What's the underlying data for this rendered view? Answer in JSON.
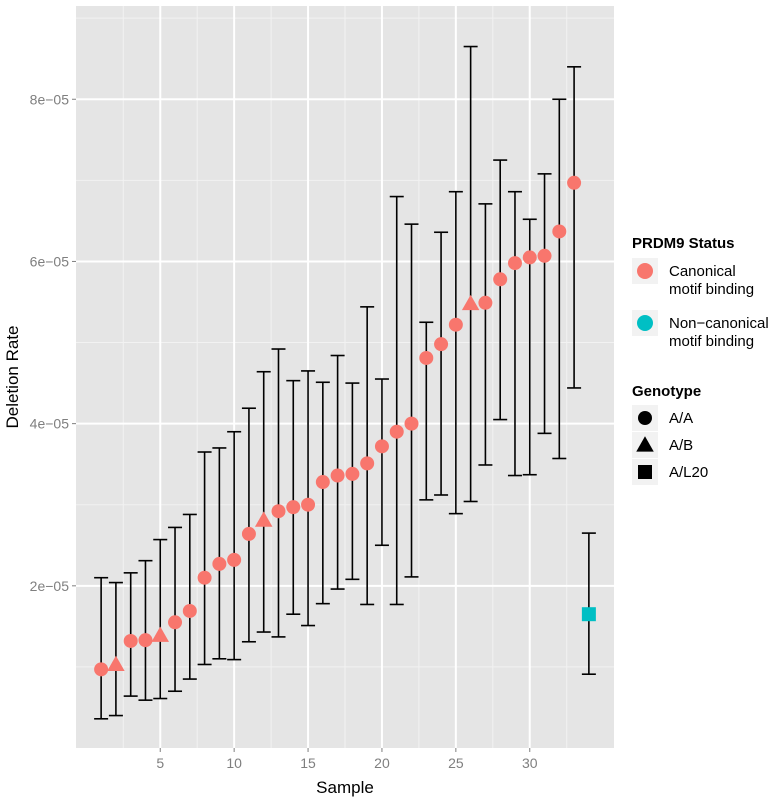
{
  "chart_data": {
    "type": "scatter",
    "xlabel": "Sample",
    "ylabel": "Deletion Rate",
    "xlim": [
      -0.7,
      35.7
    ],
    "ylim": [
      0.0,
      9.15e-05
    ],
    "x_ticks": [
      5,
      10,
      15,
      20,
      25,
      30
    ],
    "x_tick_labels": [
      "5",
      "10",
      "15",
      "20",
      "25",
      "30"
    ],
    "y_ticks": [
      2e-05,
      4e-05,
      6e-05,
      8e-05
    ],
    "y_tick_labels": [
      "2e−05",
      "4e−05",
      "6e−05",
      "8e−05"
    ],
    "grid": true,
    "legend_position": "right",
    "colors": {
      "Canonical motif binding": "#F8766D",
      "Non-canonical motif binding": "#00BFC4"
    },
    "points": [
      {
        "x": 1,
        "y": 9.7e-06,
        "ymin": 3.6e-06,
        "ymax": 2.1e-05,
        "status": "canonical",
        "genotype": "A/A"
      },
      {
        "x": 2,
        "y": 1.03e-05,
        "ymin": 4e-06,
        "ymax": 2.04e-05,
        "status": "canonical",
        "genotype": "A/B"
      },
      {
        "x": 3,
        "y": 1.32e-05,
        "ymin": 6.4e-06,
        "ymax": 2.16e-05,
        "status": "canonical",
        "genotype": "A/A"
      },
      {
        "x": 4,
        "y": 1.33e-05,
        "ymin": 5.9e-06,
        "ymax": 2.31e-05,
        "status": "canonical",
        "genotype": "A/A"
      },
      {
        "x": 5,
        "y": 1.39e-05,
        "ymin": 6.1e-06,
        "ymax": 2.57e-05,
        "status": "canonical",
        "genotype": "A/B"
      },
      {
        "x": 6,
        "y": 1.55e-05,
        "ymin": 7e-06,
        "ymax": 2.72e-05,
        "status": "canonical",
        "genotype": "A/A"
      },
      {
        "x": 7,
        "y": 1.69e-05,
        "ymin": 8.5e-06,
        "ymax": 2.88e-05,
        "status": "canonical",
        "genotype": "A/A"
      },
      {
        "x": 8,
        "y": 2.1e-05,
        "ymin": 1.03e-05,
        "ymax": 3.65e-05,
        "status": "canonical",
        "genotype": "A/A"
      },
      {
        "x": 9,
        "y": 2.27e-05,
        "ymin": 1.1e-05,
        "ymax": 3.7e-05,
        "status": "canonical",
        "genotype": "A/A"
      },
      {
        "x": 10,
        "y": 2.32e-05,
        "ymin": 1.09e-05,
        "ymax": 3.9e-05,
        "status": "canonical",
        "genotype": "A/A"
      },
      {
        "x": 11,
        "y": 2.64e-05,
        "ymin": 1.31e-05,
        "ymax": 4.19e-05,
        "status": "canonical",
        "genotype": "A/A"
      },
      {
        "x": 12,
        "y": 2.81e-05,
        "ymin": 1.43e-05,
        "ymax": 4.64e-05,
        "status": "canonical",
        "genotype": "A/B"
      },
      {
        "x": 13,
        "y": 2.92e-05,
        "ymin": 1.37e-05,
        "ymax": 4.92e-05,
        "status": "canonical",
        "genotype": "A/A"
      },
      {
        "x": 14,
        "y": 2.97e-05,
        "ymin": 1.65e-05,
        "ymax": 4.53e-05,
        "status": "canonical",
        "genotype": "A/A"
      },
      {
        "x": 15,
        "y": 3e-05,
        "ymin": 1.51e-05,
        "ymax": 4.65e-05,
        "status": "canonical",
        "genotype": "A/A"
      },
      {
        "x": 16,
        "y": 3.28e-05,
        "ymin": 1.78e-05,
        "ymax": 4.51e-05,
        "status": "canonical",
        "genotype": "A/A"
      },
      {
        "x": 17,
        "y": 3.36e-05,
        "ymin": 1.96e-05,
        "ymax": 4.84e-05,
        "status": "canonical",
        "genotype": "A/A"
      },
      {
        "x": 18,
        "y": 3.38e-05,
        "ymin": 2.08e-05,
        "ymax": 4.5e-05,
        "status": "canonical",
        "genotype": "A/A"
      },
      {
        "x": 19,
        "y": 3.51e-05,
        "ymin": 1.77e-05,
        "ymax": 5.44e-05,
        "status": "canonical",
        "genotype": "A/A"
      },
      {
        "x": 20,
        "y": 3.72e-05,
        "ymin": 2.5e-05,
        "ymax": 4.55e-05,
        "status": "canonical",
        "genotype": "A/A"
      },
      {
        "x": 21,
        "y": 3.9e-05,
        "ymin": 1.77e-05,
        "ymax": 6.8e-05,
        "status": "canonical",
        "genotype": "A/A"
      },
      {
        "x": 22,
        "y": 4e-05,
        "ymin": 2.11e-05,
        "ymax": 6.46e-05,
        "status": "canonical",
        "genotype": "A/A"
      },
      {
        "x": 23,
        "y": 4.81e-05,
        "ymin": 3.06e-05,
        "ymax": 5.25e-05,
        "status": "canonical",
        "genotype": "A/A"
      },
      {
        "x": 24,
        "y": 4.98e-05,
        "ymin": 3.12e-05,
        "ymax": 6.36e-05,
        "status": "canonical",
        "genotype": "A/A"
      },
      {
        "x": 25,
        "y": 5.22e-05,
        "ymin": 2.89e-05,
        "ymax": 6.86e-05,
        "status": "canonical",
        "genotype": "A/A"
      },
      {
        "x": 26,
        "y": 5.48e-05,
        "ymin": 3.04e-05,
        "ymax": 8.65e-05,
        "status": "canonical",
        "genotype": "A/B"
      },
      {
        "x": 27,
        "y": 5.49e-05,
        "ymin": 3.49e-05,
        "ymax": 6.71e-05,
        "status": "canonical",
        "genotype": "A/A"
      },
      {
        "x": 28,
        "y": 5.78e-05,
        "ymin": 4.05e-05,
        "ymax": 7.25e-05,
        "status": "canonical",
        "genotype": "A/A"
      },
      {
        "x": 29,
        "y": 5.98e-05,
        "ymin": 3.36e-05,
        "ymax": 6.86e-05,
        "status": "canonical",
        "genotype": "A/A"
      },
      {
        "x": 30,
        "y": 6.05e-05,
        "ymin": 3.37e-05,
        "ymax": 6.52e-05,
        "status": "canonical",
        "genotype": "A/A"
      },
      {
        "x": 31,
        "y": 6.07e-05,
        "ymin": 3.88e-05,
        "ymax": 7.08e-05,
        "status": "canonical",
        "genotype": "A/A"
      },
      {
        "x": 32,
        "y": 6.37e-05,
        "ymin": 3.57e-05,
        "ymax": 8e-05,
        "status": "canonical",
        "genotype": "A/A"
      },
      {
        "x": 33,
        "y": 6.97e-05,
        "ymin": 4.44e-05,
        "ymax": 8.4e-05,
        "status": "canonical",
        "genotype": "A/A"
      },
      {
        "x": 34,
        "y": 1.65e-05,
        "ymin": 9.1e-06,
        "ymax": 2.65e-05,
        "status": "non-canonical",
        "genotype": "A/L20"
      }
    ],
    "legend": {
      "status_title": "PRDM9 Status",
      "status_items": [
        {
          "label_lines": [
            "Canonical",
            "motif binding"
          ],
          "color": "#F8766D"
        },
        {
          "label_lines": [
            "Non−canonical",
            "motif binding"
          ],
          "color": "#00BFC4"
        }
      ],
      "genotype_title": "Genotype",
      "genotype_items": [
        {
          "label": "A/A",
          "shape": "circle"
        },
        {
          "label": "A/B",
          "shape": "triangle"
        },
        {
          "label": "A/L20",
          "shape": "square"
        }
      ]
    }
  }
}
